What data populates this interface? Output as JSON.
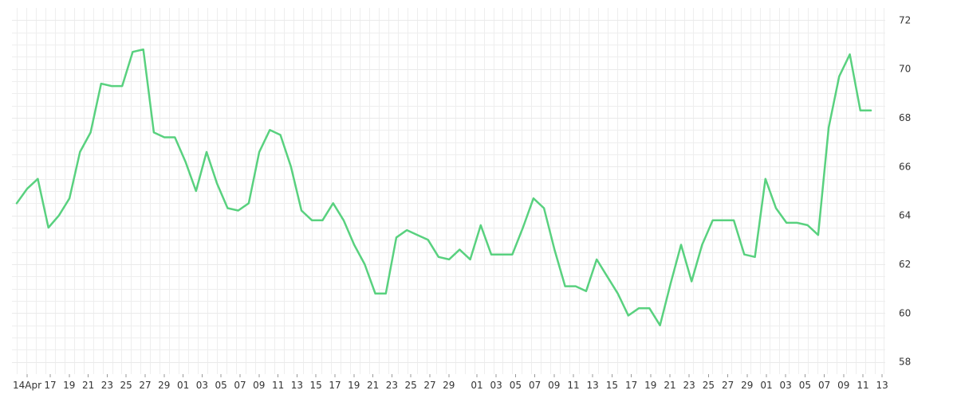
{
  "chart_data": {
    "type": "line",
    "title": "",
    "xlabel": "",
    "ylabel": "",
    "ylim": [
      57.5,
      72.5
    ],
    "yticks": [
      58,
      60,
      62,
      64,
      66,
      68,
      70,
      72
    ],
    "grid": true,
    "legend": "none",
    "colors": {
      "line": "#59d17f",
      "grid": "#eeeeee",
      "text": "#333333"
    },
    "x_tick_labels": [
      "14Apr",
      "17",
      "19",
      "21",
      "23",
      "25",
      "27",
      "29",
      "01",
      "03",
      "05",
      "07",
      "09",
      "11",
      "13",
      "15",
      "17",
      "19",
      "21",
      "23",
      "25",
      "27",
      "29",
      "01",
      "03",
      "05",
      "07",
      "09",
      "11",
      "13",
      "15",
      "17",
      "19",
      "21",
      "23",
      "25",
      "27",
      "29",
      "01",
      "03",
      "05",
      "07",
      "09",
      "11",
      "13"
    ],
    "series": [
      {
        "values": [
          64.5,
          65.1,
          65.5,
          63.5,
          64.0,
          64.7,
          66.6,
          67.4,
          69.4,
          69.3,
          69.3,
          70.7,
          70.8,
          67.4,
          67.2,
          67.2,
          66.2,
          65.0,
          66.6,
          65.3,
          64.3,
          64.2,
          64.5,
          66.6,
          67.5,
          67.3,
          66.0,
          64.2,
          63.8,
          63.8,
          64.5,
          63.8,
          62.8,
          62.0,
          60.8,
          60.8,
          63.1,
          63.4,
          63.2,
          63.0,
          62.3,
          62.2,
          62.6,
          62.2,
          63.6,
          62.4,
          62.4,
          62.4,
          63.5,
          64.7,
          64.3,
          62.6,
          61.1,
          61.1,
          60.9,
          62.2,
          61.5,
          60.8,
          59.9,
          60.2,
          60.2,
          59.5,
          61.2,
          62.8,
          61.3,
          62.8,
          63.8,
          63.8,
          63.8,
          62.4,
          62.3,
          65.5,
          64.3,
          63.7,
          63.7,
          63.6,
          63.2,
          67.6,
          69.7,
          70.6,
          68.3,
          68.3
        ]
      }
    ]
  }
}
